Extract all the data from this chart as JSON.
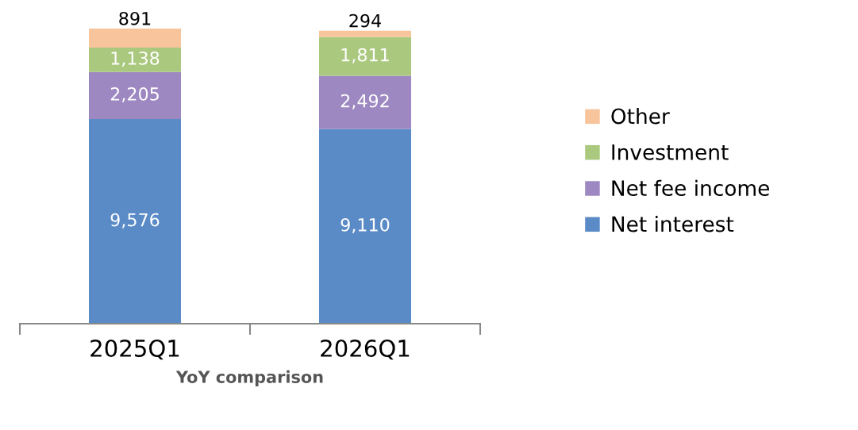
{
  "chart_data": {
    "type": "bar",
    "stacked": true,
    "xlabel": "YoY comparison",
    "categories": [
      "2025Q1",
      "2026Q1"
    ],
    "series": [
      {
        "name": "Net interest",
        "color": "#5b8bc7",
        "values": [
          9576,
          9110
        ],
        "value_labels": [
          "9,576",
          "9,110"
        ]
      },
      {
        "name": "Net fee income",
        "color": "#9d88c1",
        "values": [
          2205,
          2492
        ],
        "value_labels": [
          "2,205",
          "2,492"
        ]
      },
      {
        "name": "Investment",
        "color": "#aac97f",
        "values": [
          1138,
          1811
        ],
        "value_labels": [
          "1,138",
          "1,811"
        ]
      },
      {
        "name": "Other",
        "color": "#f8c49c",
        "values": [
          891,
          294
        ],
        "value_labels": [
          "891",
          "294"
        ]
      }
    ],
    "legend": "right",
    "grid": false
  }
}
